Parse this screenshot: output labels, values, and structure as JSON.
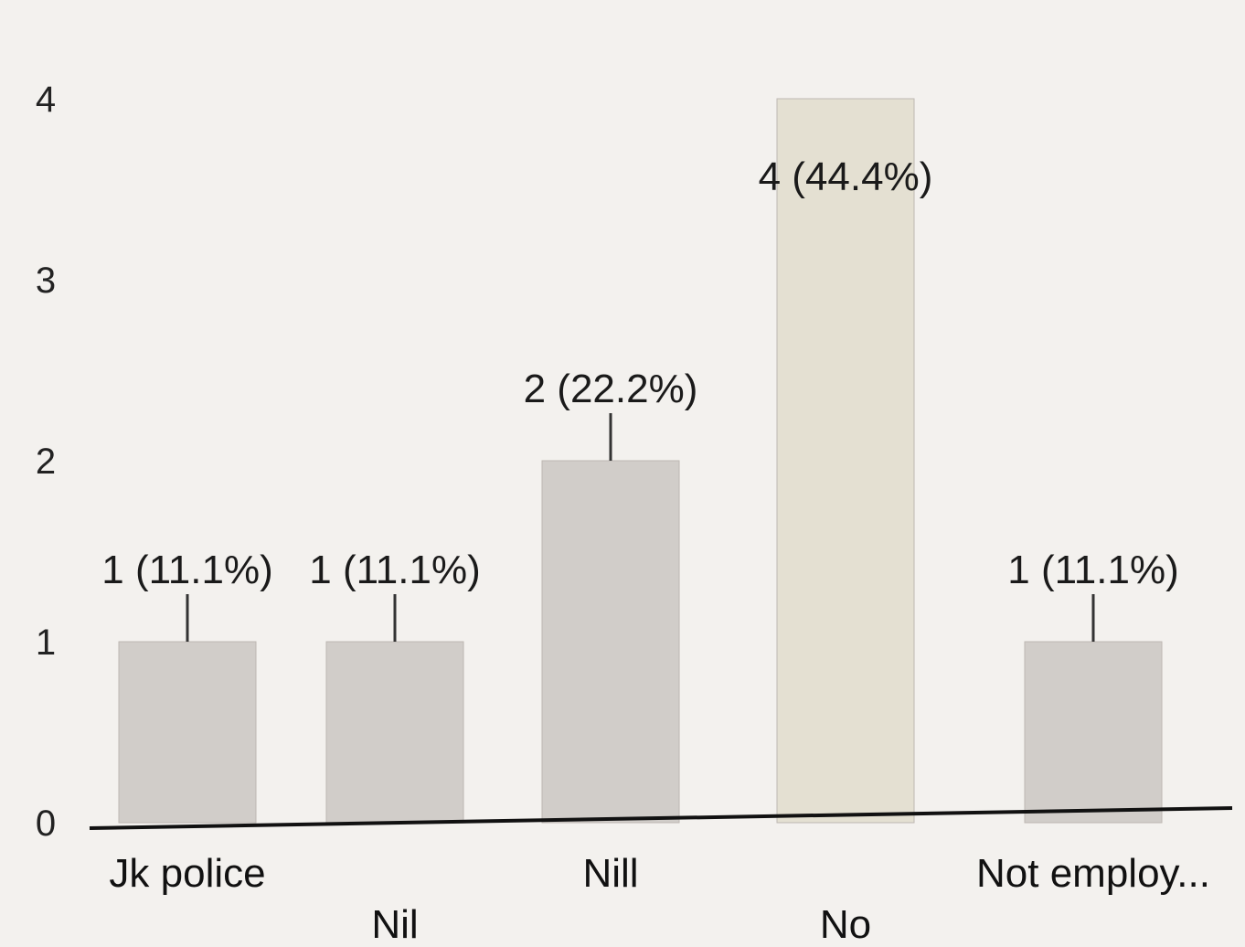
{
  "chart_data": {
    "type": "bar",
    "title": "",
    "xlabel": "",
    "ylabel": "",
    "categories": [
      "Jk police",
      "Nil",
      "Nill",
      "No",
      "Not employ..."
    ],
    "values": [
      1,
      1,
      2,
      4,
      1
    ],
    "data_labels": [
      "1 (11.1%)",
      "1 (11.1%)",
      "2 (22.2%)",
      "4 (44.4%)",
      "1 (11.1%)"
    ],
    "yticks": [
      "0",
      "1",
      "2",
      "3",
      "4"
    ],
    "ylim": [
      0,
      4
    ],
    "grid": false,
    "legend": "none",
    "bar_color": "#d1cdc9",
    "highlight_color": "#e4e0d2"
  }
}
